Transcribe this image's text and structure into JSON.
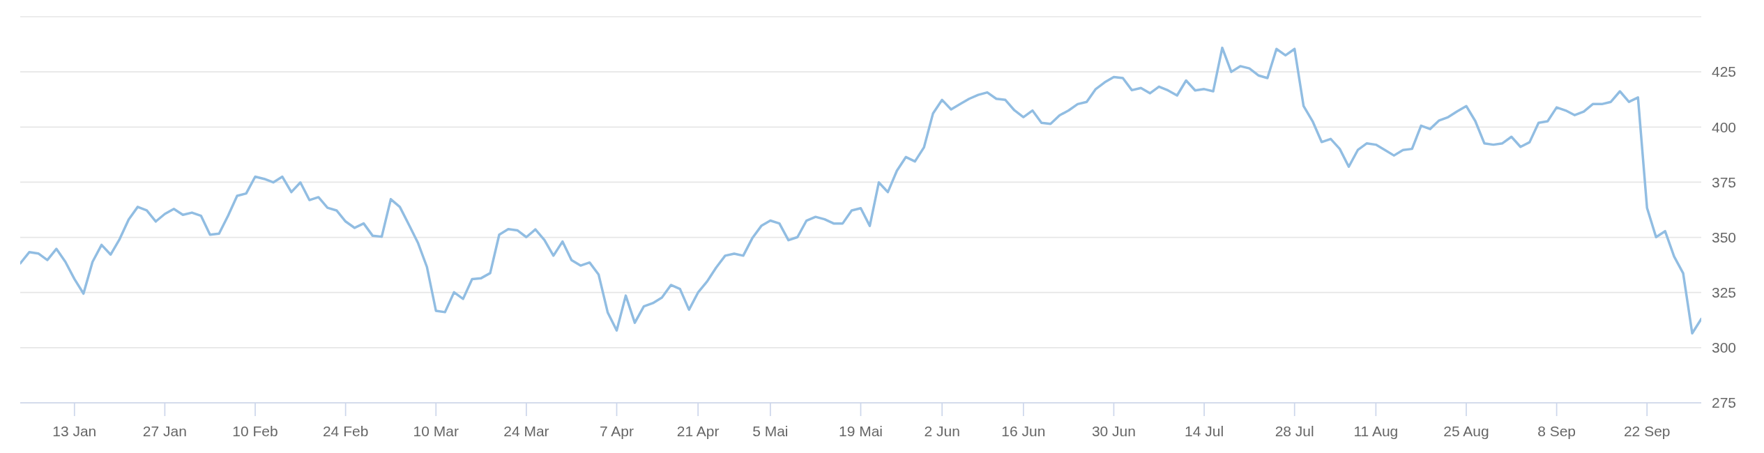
{
  "chart_data": {
    "type": "line",
    "categories": [
      null,
      null,
      null,
      null,
      null,
      null,
      "13 Jan",
      null,
      null,
      null,
      null,
      null,
      null,
      null,
      null,
      null,
      "27 Jan",
      null,
      null,
      null,
      null,
      null,
      null,
      null,
      null,
      null,
      "10 Feb",
      null,
      null,
      null,
      null,
      null,
      null,
      null,
      null,
      null,
      "24 Feb",
      null,
      null,
      null,
      null,
      null,
      null,
      null,
      null,
      null,
      "10 Mar",
      null,
      null,
      null,
      null,
      null,
      null,
      null,
      null,
      null,
      "24 Mar",
      null,
      null,
      null,
      null,
      null,
      null,
      null,
      null,
      null,
      "7 Apr",
      null,
      null,
      null,
      null,
      null,
      null,
      null,
      null,
      "21 Apr",
      null,
      null,
      null,
      null,
      null,
      null,
      null,
      "5 Mai",
      null,
      null,
      null,
      null,
      null,
      null,
      null,
      null,
      null,
      "19 Mai",
      null,
      null,
      null,
      null,
      null,
      null,
      null,
      null,
      "2 Jun",
      null,
      null,
      null,
      null,
      null,
      null,
      null,
      null,
      "16 Jun",
      null,
      null,
      null,
      null,
      null,
      null,
      null,
      null,
      null,
      "30 Jun",
      null,
      null,
      null,
      null,
      null,
      null,
      null,
      null,
      null,
      "14 Jul",
      null,
      null,
      null,
      null,
      null,
      null,
      null,
      null,
      null,
      "28 Jul",
      null,
      null,
      null,
      null,
      null,
      null,
      null,
      null,
      "11 Aug",
      null,
      null,
      null,
      null,
      null,
      null,
      null,
      null,
      null,
      "25 Aug",
      null,
      null,
      null,
      null,
      null,
      null,
      null,
      null,
      null,
      "8 Sep",
      null,
      null,
      null,
      null,
      null,
      null,
      null,
      null,
      null,
      "22 Sep",
      null,
      null,
      null,
      null,
      null,
      null
    ],
    "series": [
      {
        "color": "#91bde2",
        "values": [
          338.2,
          343.3,
          342.7,
          339.7,
          344.8,
          338.9,
          331.1,
          324.5,
          338.9,
          346.6,
          342.2,
          349.2,
          358.1,
          363.8,
          362.2,
          357.2,
          360.6,
          362.9,
          360.2,
          361.2,
          359.8,
          351.2,
          351.7,
          359.8,
          368.8,
          369.9,
          377.5,
          376.5,
          374.9,
          377.5,
          370.5,
          374.9,
          366.9,
          368.2,
          363.4,
          362.2,
          357.2,
          354.3,
          356.3,
          350.7,
          350.3,
          367.3,
          363.8,
          355.8,
          347.6,
          336.6,
          316.7,
          316.1,
          325.1,
          322.1,
          331.1,
          331.5,
          333.8,
          351.2,
          353.7,
          353.2,
          350.1,
          353.6,
          348.8,
          341.7,
          348.1,
          339.7,
          337.2,
          338.6,
          333.1,
          316,
          307.8,
          323.6,
          311.3,
          318.7,
          320.2,
          322.7,
          328.4,
          326.6,
          317.2,
          325,
          330,
          336.3,
          341.7,
          342.6,
          341.7,
          349.6,
          355.2,
          357.6,
          356.3,
          348.7,
          350.1,
          357.6,
          359.3,
          358.2,
          356.3,
          356.3,
          362.2,
          363.2,
          355.2,
          374.9,
          370.5,
          380.2,
          386.4,
          384.4,
          390.8,
          406.2,
          412.3,
          408,
          410.4,
          412.8,
          414.6,
          415.7,
          412.8,
          412.3,
          407.6,
          404.5,
          407.5,
          401.9,
          401.4,
          405.3,
          407.5,
          410.4,
          411.4,
          417.2,
          420.3,
          422.7,
          422.2,
          416.7,
          417.7,
          415.3,
          418.3,
          416.6,
          414.3,
          421.1,
          416.6,
          417.2,
          416.2,
          435.9,
          425,
          427.6,
          426.6,
          423.4,
          422.2,
          435.4,
          432.5,
          435.4,
          409.5,
          402.6,
          393.2,
          394.6,
          390.1,
          382,
          389.6,
          392.6,
          392,
          389.6,
          387.1,
          389.6,
          390.1,
          400.6,
          399.1,
          403,
          404.5,
          407.1,
          409.5,
          402.7,
          392.6,
          392,
          392.6,
          395.6,
          391,
          393.1,
          401.9,
          402.6,
          408.9,
          407.5,
          405.4,
          407,
          410.4,
          410.4,
          411.4,
          416.2,
          411.4,
          413.4,
          363.4,
          350.1,
          352.8,
          341.3,
          333.7,
          306.5,
          313
        ]
      }
    ],
    "ylim": [
      275,
      450
    ],
    "yticks": [
      275,
      300,
      325,
      350,
      375,
      400,
      425,
      {
        "value": 450,
        "label": null
      }
    ],
    "grid": "y"
  }
}
